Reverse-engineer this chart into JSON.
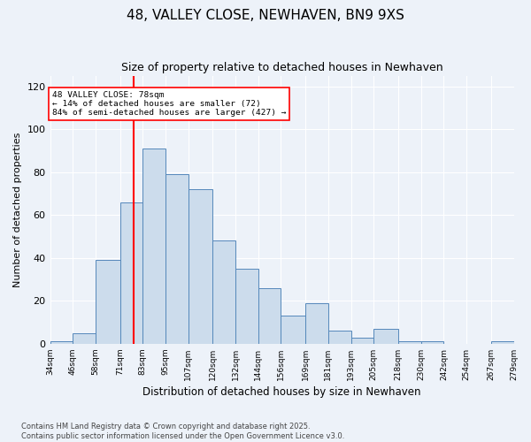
{
  "title": "48, VALLEY CLOSE, NEWHAVEN, BN9 9XS",
  "subtitle": "Size of property relative to detached houses in Newhaven",
  "xlabel": "Distribution of detached houses by size in Newhaven",
  "ylabel": "Number of detached properties",
  "footnote": "Contains HM Land Registry data © Crown copyright and database right 2025.\nContains public sector information licensed under the Open Government Licence v3.0.",
  "bar_color": "#ccdcec",
  "bar_edge_color": "#5588bb",
  "red_line_x": 78,
  "ylim": [
    0,
    125
  ],
  "yticks": [
    0,
    20,
    40,
    60,
    80,
    100,
    120
  ],
  "annotation_text": "48 VALLEY CLOSE: 78sqm\n← 14% of detached houses are smaller (72)\n84% of semi-detached houses are larger (427) →",
  "bin_edges": [
    34,
    46,
    58,
    71,
    83,
    95,
    107,
    120,
    132,
    144,
    156,
    169,
    181,
    193,
    205,
    218,
    230,
    242,
    254,
    267,
    279
  ],
  "heights": [
    1,
    5,
    39,
    66,
    91,
    79,
    72,
    48,
    35,
    26,
    13,
    19,
    6,
    3,
    7,
    1,
    1,
    0,
    0,
    1
  ],
  "background_color": "#edf2f9"
}
